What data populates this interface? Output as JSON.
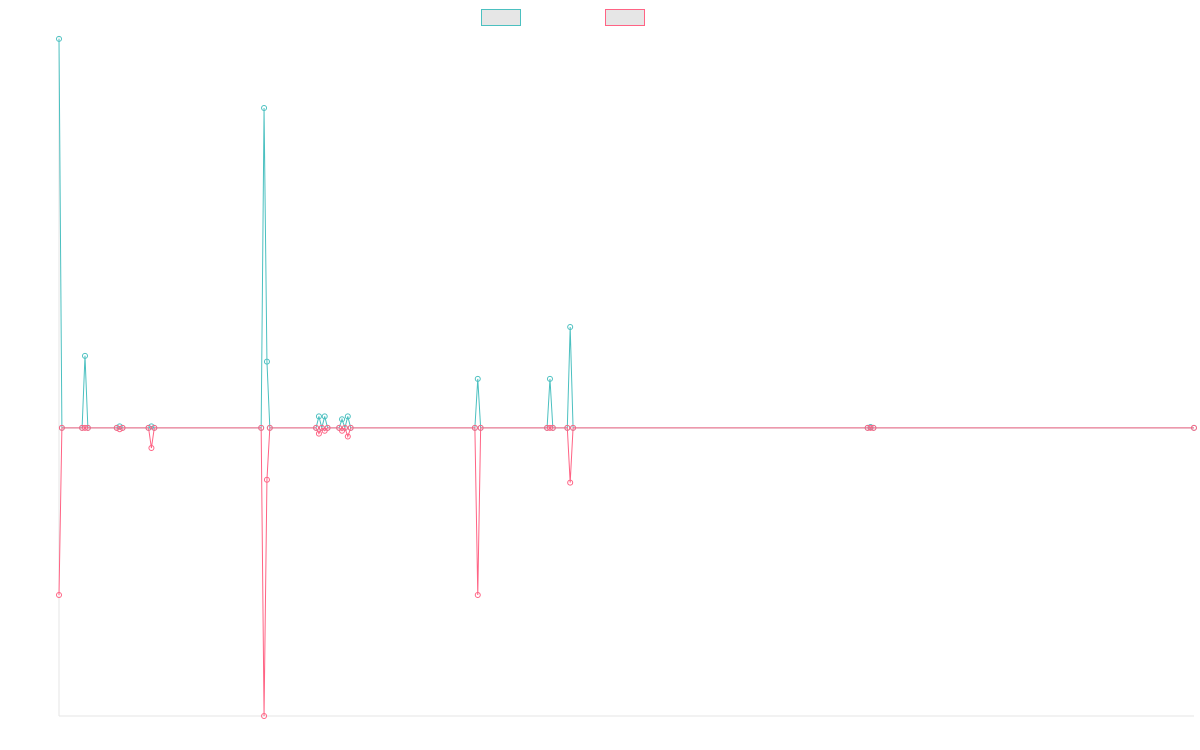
{
  "chart_data": {
    "type": "line",
    "title": "",
    "xlabel": "",
    "ylabel": "",
    "grid": false,
    "legend_position": "top-center",
    "ylim": [
      -1.0,
      1.36
    ],
    "xlim": [
      0,
      393
    ],
    "series": [
      {
        "color": "#4bc0c0",
        "fill": "#e6e6e6",
        "points": [
          [
            0,
            1.35
          ],
          [
            1,
            0
          ],
          [
            8,
            0
          ],
          [
            9,
            0.25
          ],
          [
            10,
            0
          ],
          [
            20,
            0
          ],
          [
            21,
            0.005
          ],
          [
            22,
            0
          ],
          [
            31,
            0
          ],
          [
            32,
            0.005
          ],
          [
            33,
            0
          ],
          [
            70,
            0
          ],
          [
            71,
            1.11
          ],
          [
            72,
            0.23
          ],
          [
            73,
            0
          ],
          [
            89,
            0
          ],
          [
            90,
            0.04
          ],
          [
            91,
            0
          ],
          [
            92,
            0.04
          ],
          [
            93,
            0
          ],
          [
            97,
            0
          ],
          [
            98,
            0.03
          ],
          [
            99,
            0
          ],
          [
            100,
            0.04
          ],
          [
            101,
            0
          ],
          [
            144,
            0
          ],
          [
            145,
            0.17
          ],
          [
            146,
            0
          ],
          [
            169,
            0
          ],
          [
            170,
            0.17
          ],
          [
            171,
            0
          ],
          [
            176,
            0
          ],
          [
            177,
            0.35
          ],
          [
            178,
            0
          ],
          [
            280,
            0
          ],
          [
            281,
            0.003
          ],
          [
            282,
            0
          ],
          [
            393,
            0
          ]
        ]
      },
      {
        "color": "#ff6384",
        "fill": "#e6e6e6",
        "points": [
          [
            0,
            -0.58
          ],
          [
            1,
            0
          ],
          [
            8,
            0
          ],
          [
            9,
            0
          ],
          [
            10,
            0
          ],
          [
            20,
            0
          ],
          [
            21,
            -0.005
          ],
          [
            22,
            0
          ],
          [
            31,
            0
          ],
          [
            32,
            -0.07
          ],
          [
            33,
            0
          ],
          [
            70,
            0
          ],
          [
            71,
            -1.0
          ],
          [
            72,
            -0.18
          ],
          [
            73,
            0
          ],
          [
            89,
            0
          ],
          [
            90,
            -0.02
          ],
          [
            91,
            0
          ],
          [
            92,
            -0.01
          ],
          [
            93,
            0
          ],
          [
            97,
            0
          ],
          [
            98,
            -0.01
          ],
          [
            99,
            0
          ],
          [
            100,
            -0.03
          ],
          [
            101,
            0
          ],
          [
            144,
            0
          ],
          [
            145,
            -0.58
          ],
          [
            146,
            0
          ],
          [
            169,
            0
          ],
          [
            170,
            0
          ],
          [
            171,
            0
          ],
          [
            176,
            0
          ],
          [
            177,
            -0.19
          ],
          [
            178,
            0
          ],
          [
            280,
            0
          ],
          [
            281,
            0
          ],
          [
            282,
            0
          ],
          [
            393,
            0
          ]
        ]
      }
    ]
  }
}
